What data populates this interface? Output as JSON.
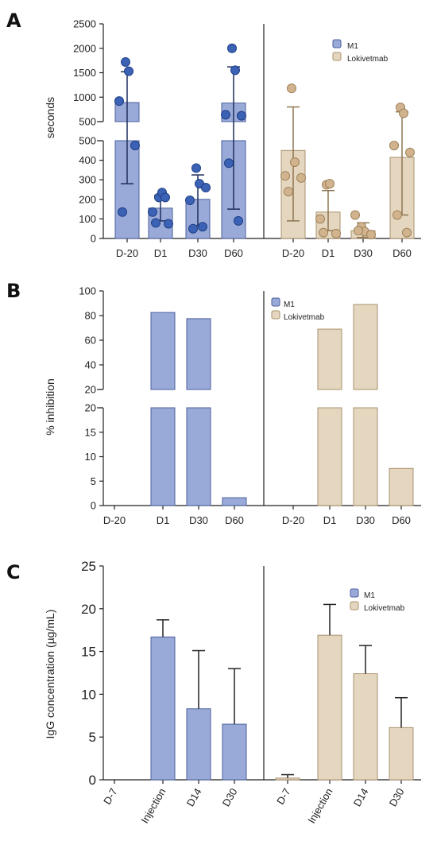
{
  "colors": {
    "m1_fill": "#9aaad8",
    "m1_stroke": "#4a5f9c",
    "m1_point": "#3b62b5",
    "m1_point_stroke": "#1f3f85",
    "m1_error": "#1f2e5c",
    "loki_fill": "#e4d6bf",
    "loki_stroke": "#a8926e",
    "loki_point": "#d1b48e",
    "loki_point_stroke": "#9e825a",
    "loki_error": "#8f7550",
    "axis": "#222222"
  },
  "chart_data": [
    {
      "panel": "A",
      "type": "bar",
      "ylabel": "seconds",
      "categories": [
        "D-20",
        "D1",
        "D30",
        "D60"
      ],
      "broken_axis": {
        "lower_ylim": [
          0,
          500
        ],
        "lower_ticks": [
          0,
          100,
          200,
          300,
          400,
          500
        ],
        "upper_ylim": [
          500,
          2500
        ],
        "upper_ticks": [
          500,
          1000,
          1500,
          2000,
          2500
        ]
      },
      "legend": [
        "M1",
        "Lokivetmab"
      ],
      "series": [
        {
          "name": "M1",
          "values": [
            890,
            155,
            200,
            880
          ],
          "error_low": [
            280,
            90,
            65,
            150
          ],
          "error_high": [
            1520,
            220,
            325,
            1620
          ],
          "points": [
            [
              1720,
              1530,
              920,
              475,
              135
            ],
            [
              210,
              235,
              135,
              75,
              80,
              210
            ],
            [
              360,
              280,
              195,
              260,
              50,
              60
            ],
            [
              2000,
              1550,
              640,
              620,
              385,
              90
            ]
          ]
        },
        {
          "name": "Lokivetmab",
          "values": [
            450,
            135,
            40,
            415
          ],
          "error_low": [
            90,
            40,
            5,
            120
          ],
          "error_high": [
            800,
            245,
            80,
            700
          ],
          "points": [
            [
              1180,
              390,
              320,
              310,
              240
            ],
            [
              275,
              280,
              100,
              25,
              30
            ],
            [
              60,
              35,
              120,
              20,
              40
            ],
            [
              790,
              670,
              475,
              440,
              120,
              30
            ]
          ]
        }
      ]
    },
    {
      "panel": "B",
      "type": "bar",
      "ylabel": "% inhibition",
      "categories": [
        "D-20",
        "D1",
        "D30",
        "D60"
      ],
      "broken_axis": {
        "lower_ylim": [
          0,
          20
        ],
        "lower_ticks": [
          0,
          5,
          10,
          15,
          20
        ],
        "upper_ylim": [
          20,
          100
        ],
        "upper_ticks": [
          20,
          40,
          60,
          80,
          100
        ]
      },
      "legend": [
        "M1",
        "Lokivetmab"
      ],
      "series": [
        {
          "name": "M1",
          "values": [
            0,
            82.5,
            77.5,
            1.6
          ]
        },
        {
          "name": "Lokivetmab",
          "values": [
            0,
            69,
            89,
            7.6
          ]
        }
      ]
    },
    {
      "panel": "C",
      "type": "bar",
      "ylabel": "IgG concentration (µg/mL)",
      "categories": [
        "D-7",
        "Injection",
        "D14",
        "D30"
      ],
      "ylim": [
        0,
        25
      ],
      "yticks": [
        0,
        5,
        10,
        15,
        20,
        25
      ],
      "legend": [
        "M1",
        "Lokivetmab"
      ],
      "series": [
        {
          "name": "M1",
          "values": [
            0,
            16.7,
            8.3,
            6.5
          ],
          "error_high": [
            0,
            18.7,
            15.1,
            13.0
          ]
        },
        {
          "name": "Lokivetmab",
          "values": [
            0.2,
            16.9,
            12.4,
            6.1
          ],
          "error_high": [
            0.6,
            20.5,
            15.7,
            9.6
          ]
        }
      ]
    }
  ]
}
